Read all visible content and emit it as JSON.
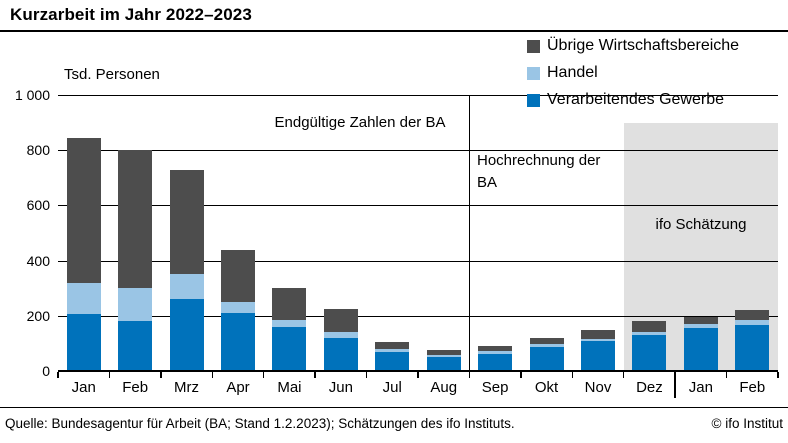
{
  "title": "Kurzarbeit im Jahr 2022–2023",
  "footer": {
    "source": "Quelle: Bundesagentur für Arbeit (BA; Stand 1.2.2023); Schätzungen des ifo Instituts.",
    "copyright": "© ifo Institut"
  },
  "chart_data": {
    "type": "bar",
    "stacked": true,
    "title": "Kurzarbeit im Jahr 2022–2023",
    "unit_label": "Tsd. Personen",
    "categories": [
      "Jan",
      "Feb",
      "Mrz",
      "Apr",
      "Mai",
      "Jun",
      "Jul",
      "Aug",
      "Sep",
      "Okt",
      "Nov",
      "Dez",
      "Jan",
      "Feb"
    ],
    "series": [
      {
        "name": "Verarbeitendes Gewerbe",
        "color": "#0072bb",
        "values": [
          205,
          180,
          260,
          210,
          160,
          120,
          70,
          50,
          63,
          88,
          108,
          130,
          155,
          165
        ]
      },
      {
        "name": "Handel",
        "color": "#9ac5e5",
        "values": [
          115,
          120,
          90,
          40,
          25,
          20,
          10,
          8,
          9,
          9,
          9,
          10,
          15,
          18
        ]
      },
      {
        "name": "Übrige Wirtschaftsbereiche",
        "color": "#4d4d4d",
        "values": [
          525,
          500,
          380,
          190,
          115,
          85,
          25,
          17,
          18,
          23,
          30,
          40,
          27,
          37
        ]
      }
    ],
    "ylim": [
      0,
      1000
    ],
    "yticks": [
      0,
      200,
      400,
      600,
      800,
      1000
    ],
    "ytick_labels": [
      "0",
      "200",
      "400",
      "600",
      "800",
      "1 000"
    ],
    "grid": true,
    "legend_position": "top-right",
    "legend_order_top_to_bottom": [
      "Übrige Wirtschaftsbereiche",
      "Handel",
      "Verarbeitendes Gewerbe"
    ],
    "annotations": [
      {
        "id": "final",
        "text": "Endgültige Zahlen der BA"
      },
      {
        "id": "projection",
        "text": "Hochrechnung der BA"
      },
      {
        "id": "estimate",
        "text": "ifo Schätzung"
      }
    ],
    "regions": {
      "final_vs_projection_boundary_index": 8,
      "year_separator_boundary_index": 12,
      "ifo_shade_start_boundary_index": 11,
      "ifo_shade_top_value": 900
    },
    "colors": {
      "shade_background": "#e0e0e0",
      "axis": "#000000"
    }
  }
}
